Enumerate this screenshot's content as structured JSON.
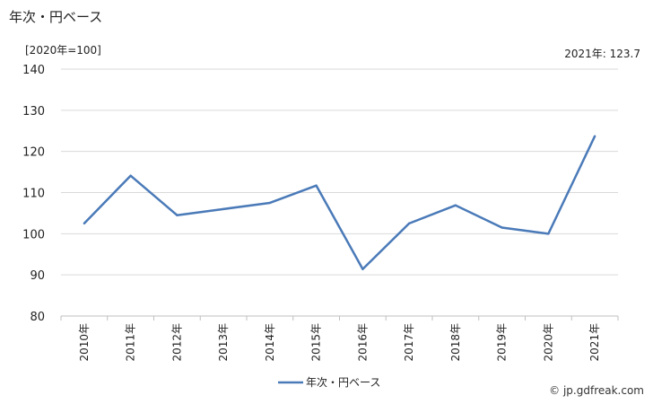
{
  "header": {
    "title": "年次・円ベース",
    "unit": "[2020年=100]",
    "latest": "2021年: 123.7"
  },
  "footer": {
    "credit": "© jp.gdfreak.com"
  },
  "colors": {
    "line": "#4a7ab8",
    "grid": "#d9d9d9"
  },
  "chart_data": {
    "type": "line",
    "categories": [
      "2010年",
      "2011年",
      "2012年",
      "2013年",
      "2014年",
      "2015年",
      "2016年",
      "2017年",
      "2018年",
      "2019年",
      "2020年",
      "2021年"
    ],
    "series": [
      {
        "name": "年次・円ベース",
        "values": [
          102.5,
          114.1,
          104.5,
          106.0,
          107.5,
          111.7,
          91.4,
          102.5,
          106.9,
          101.5,
          100.0,
          123.7
        ]
      }
    ],
    "ylim": [
      80,
      140
    ],
    "yticks": [
      80,
      90,
      100,
      110,
      120,
      130,
      140
    ],
    "grid": true,
    "legend": "bottom-center"
  }
}
